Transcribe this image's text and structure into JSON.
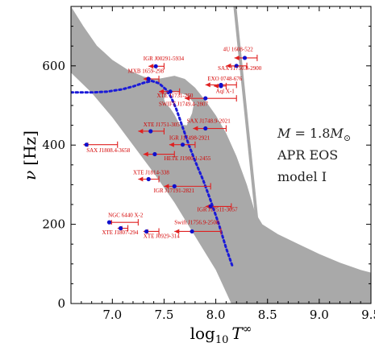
{
  "chart_data": {
    "type": "scatter",
    "xlim": [
      6.6,
      9.5
    ],
    "ylim": [
      0,
      750
    ],
    "xticks": [
      "7.0",
      "7.5",
      "8.0",
      "8.5",
      "9.0",
      "9.5"
    ],
    "xtick_values": [
      7.0,
      7.5,
      8.0,
      8.5,
      9.0,
      9.5
    ],
    "yticks": [
      "0",
      "200",
      "400",
      "600"
    ],
    "ytick_values": [
      0,
      200,
      400,
      600
    ],
    "xlabel_main": "log",
    "xlabel_sub": "10",
    "xlabel_var": "T",
    "xlabel_sup": "∞",
    "ylabel_main": "ν",
    "ylabel_unit": "[Hz]",
    "annotation": {
      "line1_var": "M",
      "line1_eq": " = 1.8",
      "line1_msym": "M",
      "line1_sub": "⊙",
      "line2": "APR EOS",
      "line3": "model I"
    },
    "colors": {
      "region": "#a9a9a9",
      "marker": "#1010cc",
      "errorbar": "#e02020",
      "label": "#d40000",
      "curve": "#1a1ad8"
    },
    "instability_region_upper": [
      [
        6.6,
        750
      ],
      [
        6.72,
        700
      ],
      [
        6.85,
        651
      ],
      [
        7.0,
        615
      ],
      [
        7.15,
        590
      ],
      [
        7.3,
        573
      ],
      [
        7.42,
        566
      ],
      [
        7.5,
        570
      ],
      [
        7.6,
        575
      ],
      [
        7.7,
        567
      ],
      [
        7.8,
        545
      ],
      [
        7.9,
        512
      ],
      [
        8.0,
        475
      ],
      [
        8.1,
        430
      ],
      [
        8.2,
        372
      ],
      [
        8.3,
        300
      ],
      [
        8.38,
        230
      ],
      [
        8.45,
        200
      ],
      [
        8.6,
        175
      ],
      [
        8.8,
        150
      ],
      [
        9.0,
        125
      ],
      [
        9.2,
        103
      ],
      [
        9.4,
        85
      ],
      [
        9.5,
        78
      ]
    ],
    "instability_region_lower": [
      [
        6.6,
        583
      ],
      [
        6.8,
        532
      ],
      [
        7.0,
        470
      ],
      [
        7.2,
        400
      ],
      [
        7.4,
        330
      ],
      [
        7.6,
        255
      ],
      [
        7.8,
        170
      ],
      [
        8.0,
        85
      ],
      [
        8.15,
        0
      ]
    ],
    "instability_hole": [
      [
        7.52,
        503
      ],
      [
        7.5,
        515
      ],
      [
        7.51,
        526
      ],
      [
        7.55,
        532
      ],
      [
        7.62,
        534
      ],
      [
        7.72,
        526
      ],
      [
        7.79,
        506
      ],
      [
        7.77,
        480
      ],
      [
        7.72,
        450
      ],
      [
        7.65,
        452
      ],
      [
        7.6,
        477
      ],
      [
        7.56,
        493
      ]
    ],
    "instability_spike": [
      [
        8.17,
        750
      ],
      [
        8.2,
        750
      ],
      [
        8.42,
        188
      ],
      [
        8.39,
        190
      ]
    ],
    "stability_curve": [
      [
        6.6,
        533
      ],
      [
        6.8,
        533
      ],
      [
        6.95,
        535
      ],
      [
        7.1,
        541
      ],
      [
        7.2,
        548
      ],
      [
        7.3,
        557
      ],
      [
        7.38,
        562
      ],
      [
        7.45,
        556
      ],
      [
        7.52,
        540
      ],
      [
        7.57,
        520
      ],
      [
        7.62,
        490
      ],
      [
        7.68,
        445
      ],
      [
        7.74,
        400
      ],
      [
        7.8,
        360
      ],
      [
        7.88,
        310
      ],
      [
        7.95,
        260
      ],
      [
        8.03,
        200
      ],
      [
        8.1,
        140
      ],
      [
        8.16,
        95
      ]
    ],
    "series": [
      {
        "label": "4U 1608-522",
        "x": 8.28,
        "y": 620,
        "xerr_lo": 8.18,
        "xerr_hi": 8.4,
        "lx": 8.07,
        "ly": 637
      },
      {
        "label": "IGR J00291-5934",
        "x": 7.42,
        "y": 599,
        "xerr_lo": 7.35,
        "xerr_hi": 7.5,
        "lx": 7.3,
        "ly": 614
      },
      {
        "label": "SAX J1750.8-2900",
        "x": 8.2,
        "y": 600,
        "xerr_lo": 8.1,
        "xerr_hi": 8.3,
        "lx": 8.02,
        "ly": 589
      },
      {
        "label": "MXB 1659-298",
        "x": 7.35,
        "y": 567,
        "xerr_lo": 7.3,
        "xerr_hi": 7.45,
        "lx": 7.15,
        "ly": 582
      },
      {
        "label": "EXO 0748-676",
        "x": 8.05,
        "y": 552,
        "xerr_lo": 7.9,
        "xerr_hi": 8.2,
        "lx": 7.92,
        "ly": 563
      },
      {
        "label": "Aql X-1",
        "x": 8.05,
        "y": 549,
        "xerr_lo": 7.98,
        "xerr_hi": 8.1,
        "lx": 8.0,
        "ly": 532
      },
      {
        "label": "XTE J1731-260",
        "x": 7.56,
        "y": 535,
        "xerr_lo": 7.45,
        "xerr_hi": 7.65,
        "lx": 7.43,
        "ly": 520
      },
      {
        "label": "SWIFT J1749.4-2807",
        "x": 7.9,
        "y": 518,
        "xerr_lo": 7.7,
        "xerr_hi": 8.2,
        "lx": 7.45,
        "ly": 499
      },
      {
        "label": "SAX J1748.9-2021",
        "x": 7.9,
        "y": 442,
        "xerr_lo": 7.78,
        "xerr_hi": 8.1,
        "lx": 7.72,
        "ly": 456
      },
      {
        "label": "XTE J1751-305",
        "x": 7.37,
        "y": 435,
        "xerr_lo": 7.25,
        "xerr_hi": 7.5,
        "lx": 7.3,
        "ly": 447
      },
      {
        "label": "IGR J17498-2921",
        "x": 7.68,
        "y": 401,
        "xerr_lo": 7.55,
        "xerr_hi": 7.8,
        "lx": 7.55,
        "ly": 414
      },
      {
        "label": "SAX J1808.4-3658",
        "x": 6.75,
        "y": 401,
        "xerr_lo": 6.72,
        "xerr_hi": 7.05,
        "lx": 6.75,
        "ly": 382
      },
      {
        "label": "HETE J1900.1-2455",
        "x": 7.41,
        "y": 377,
        "xerr_lo": 7.3,
        "xerr_hi": 7.6,
        "lx": 7.5,
        "ly": 362
      },
      {
        "label": "XTE J1814-338",
        "x": 7.35,
        "y": 314,
        "xerr_lo": 7.25,
        "xerr_hi": 7.45,
        "lx": 7.2,
        "ly": 326
      },
      {
        "label": "IGR J17191-2821",
        "x": 7.6,
        "y": 296,
        "xerr_lo": 7.5,
        "xerr_hi": 7.95,
        "lx": 7.4,
        "ly": 280
      },
      {
        "label": "IGR J17511-3057",
        "x": 7.95,
        "y": 245,
        "xerr_lo": 7.9,
        "xerr_hi": 8.15,
        "lx": 7.82,
        "ly": 233
      },
      {
        "label": "NGC 6440 X-2",
        "x": 6.97,
        "y": 205,
        "xerr_lo": 6.95,
        "xerr_hi": 7.25,
        "lx": 6.96,
        "ly": 219
      },
      {
        "label": "Swift J1756.9-2508",
        "x": 7.77,
        "y": 182,
        "xerr_lo": 7.6,
        "xerr_hi": 8.05,
        "lx": 7.6,
        "ly": 200
      },
      {
        "label": "XTE J1807-294",
        "x": 7.08,
        "y": 190,
        "xerr_lo": 7.05,
        "xerr_hi": 7.15,
        "lx": 6.9,
        "ly": 175
      },
      {
        "label": "XTE J0929-314",
        "x": 7.33,
        "y": 182,
        "xerr_lo": 7.3,
        "xerr_hi": 7.45,
        "lx": 7.3,
        "ly": 166
      }
    ]
  }
}
